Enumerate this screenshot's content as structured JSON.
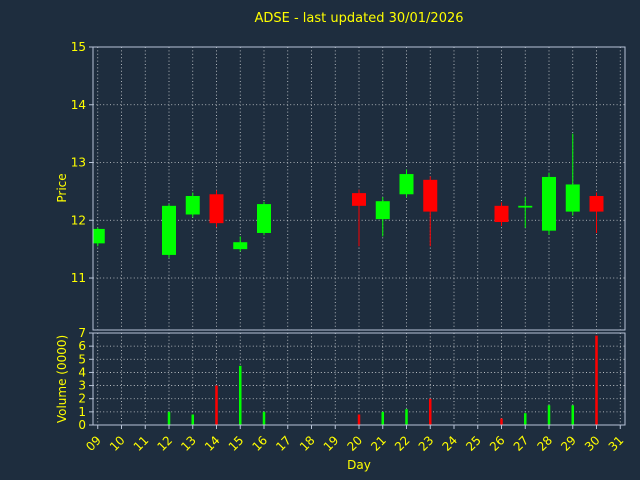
{
  "title": "ADSE - last updated 30/01/2026",
  "colors": {
    "background": "#1e2d3e",
    "text": "#ffff00",
    "grid": "#ffffff",
    "spine": "#b8c4d8",
    "up": "#00ff00",
    "down": "#ff0000"
  },
  "chart_data": [
    {
      "type": "candlestick",
      "panel": "price",
      "title": "ADSE - last updated 30/01/2026",
      "ylabel": "Price",
      "ylim": [
        10.1,
        15.0
      ],
      "yticks": [
        11,
        12,
        13,
        14,
        15
      ],
      "xlim": [
        8.8,
        31.2
      ],
      "grid": true,
      "candles": [
        {
          "day": 9,
          "open": 11.6,
          "high": 11.87,
          "low": 11.55,
          "close": 11.85
        },
        {
          "day": 12,
          "open": 11.4,
          "high": 12.28,
          "low": 11.35,
          "close": 12.25
        },
        {
          "day": 13,
          "open": 12.1,
          "high": 12.48,
          "low": 12.05,
          "close": 12.42
        },
        {
          "day": 14,
          "open": 12.45,
          "high": 12.52,
          "low": 11.88,
          "close": 11.95
        },
        {
          "day": 15,
          "open": 11.5,
          "high": 11.72,
          "low": 11.46,
          "close": 11.62
        },
        {
          "day": 16,
          "open": 11.78,
          "high": 12.32,
          "low": 11.74,
          "close": 12.28
        },
        {
          "day": 20,
          "open": 12.47,
          "high": 12.53,
          "low": 11.55,
          "close": 12.25
        },
        {
          "day": 21,
          "open": 12.02,
          "high": 12.4,
          "low": 11.72,
          "close": 12.33
        },
        {
          "day": 22,
          "open": 12.45,
          "high": 12.88,
          "low": 12.4,
          "close": 12.8
        },
        {
          "day": 23,
          "open": 12.7,
          "high": 12.76,
          "low": 11.55,
          "close": 12.15
        },
        {
          "day": 26,
          "open": 12.25,
          "high": 12.31,
          "low": 11.9,
          "close": 11.97
        },
        {
          "day": 27,
          "open": 12.22,
          "high": 12.4,
          "low": 11.87,
          "close": 12.25
        },
        {
          "day": 28,
          "open": 11.82,
          "high": 12.82,
          "low": 11.75,
          "close": 12.75
        },
        {
          "day": 29,
          "open": 12.15,
          "high": 13.5,
          "low": 12.08,
          "close": 12.62
        },
        {
          "day": 30,
          "open": 12.42,
          "high": 12.48,
          "low": 11.78,
          "close": 12.15
        }
      ]
    },
    {
      "type": "bar",
      "panel": "volume",
      "ylabel": "Volume (0000)",
      "xlabel": "Day",
      "ylim": [
        0,
        7
      ],
      "yticks": [
        0,
        1,
        2,
        3,
        4,
        5,
        6,
        7
      ],
      "xlim": [
        8.8,
        31.2
      ],
      "xticks": [
        "09",
        "10",
        "11",
        "12",
        "13",
        "14",
        "15",
        "16",
        "17",
        "18",
        "19",
        "20",
        "21",
        "22",
        "23",
        "24",
        "25",
        "26",
        "27",
        "28",
        "29",
        "30",
        "31"
      ],
      "grid": true,
      "bars": [
        {
          "day": 12,
          "value": 1.0,
          "direction": "up"
        },
        {
          "day": 13,
          "value": 0.8,
          "direction": "up"
        },
        {
          "day": 14,
          "value": 3.0,
          "direction": "down"
        },
        {
          "day": 15,
          "value": 4.5,
          "direction": "up"
        },
        {
          "day": 16,
          "value": 1.0,
          "direction": "up"
        },
        {
          "day": 20,
          "value": 0.8,
          "direction": "down"
        },
        {
          "day": 21,
          "value": 1.0,
          "direction": "up"
        },
        {
          "day": 22,
          "value": 1.2,
          "direction": "up"
        },
        {
          "day": 23,
          "value": 2.0,
          "direction": "down"
        },
        {
          "day": 26,
          "value": 0.5,
          "direction": "down"
        },
        {
          "day": 27,
          "value": 0.9,
          "direction": "up"
        },
        {
          "day": 28,
          "value": 1.5,
          "direction": "up"
        },
        {
          "day": 29,
          "value": 1.5,
          "direction": "up"
        },
        {
          "day": 30,
          "value": 6.8,
          "direction": "down"
        }
      ]
    }
  ]
}
